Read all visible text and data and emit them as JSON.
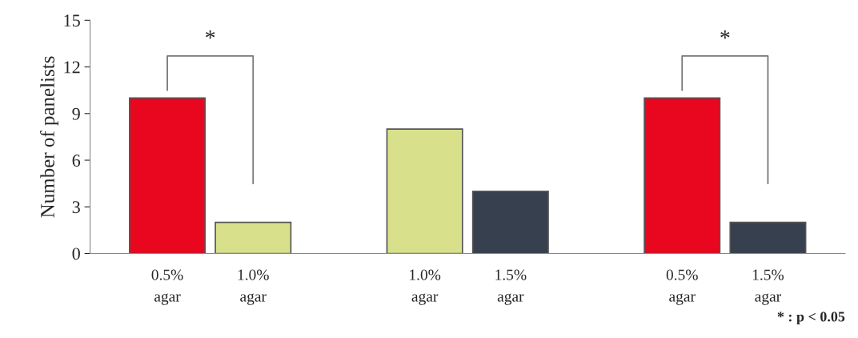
{
  "chart_data": {
    "type": "bar",
    "ylabel": "Number of panelists",
    "categories": [
      "0.5%\nagar",
      "1.0%\nagar",
      null,
      "1.0%\nagar",
      "1.5%\nagar",
      null,
      "0.5%\nagar",
      "1.5%\nagar"
    ],
    "values": [
      10,
      2,
      null,
      8,
      4,
      null,
      10,
      2
    ],
    "colors": [
      "#e8071e",
      "#d8e08c",
      null,
      "#d8e08c",
      "#36404e",
      null,
      "#e8071e",
      "#36404e"
    ],
    "ylim": [
      0,
      15
    ],
    "yticks": [
      0,
      3,
      6,
      9,
      12,
      15
    ],
    "grid": false,
    "legend": false,
    "annotations": [
      "*",
      "*",
      "* : p < 0.05"
    ]
  }
}
